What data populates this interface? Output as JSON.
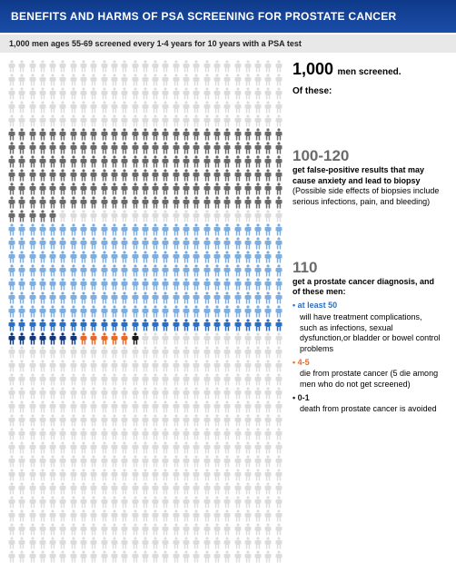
{
  "header": {
    "title": "BENEFITS AND HARMS OF PSA SCREENING FOR PROSTATE CANCER",
    "bg_gradient_from": "#0f3a8a",
    "bg_gradient_to": "#1a4da8"
  },
  "subheader": {
    "text": "1,000 men ages 55-69 screened every 1-4 years for 10 years with a PSA test",
    "bg": "#e8e8e8"
  },
  "colors": {
    "pale_gray": "#dcdcdc",
    "dark_gray": "#6b6b6b",
    "light_blue": "#7eaee0",
    "mid_blue": "#2a6fc7",
    "dark_blue": "#13397a",
    "orange": "#e86a2a",
    "black": "#1a1a1a",
    "text_gray": "#6b6b6b",
    "text_black": "#1a1a1a",
    "bullet_blue": "#2a6fc7",
    "bullet_orange": "#e86a2a",
    "bullet_black": "#1a1a1a"
  },
  "grid": {
    "cols": 27,
    "rows": 37,
    "runs": [
      {
        "color": "pale_gray",
        "count": 135
      },
      {
        "color": "dark_gray",
        "count": 167
      },
      {
        "color": "pale_gray",
        "count": 22
      },
      {
        "color": "light_blue",
        "count": 189
      },
      {
        "color": "mid_blue",
        "count": 27
      },
      {
        "color": "dark_blue",
        "count": 7
      },
      {
        "color": "orange",
        "count": 5
      },
      {
        "color": "black",
        "count": 1
      },
      {
        "color": "pale_gray",
        "count": 446
      }
    ]
  },
  "stats": {
    "screened": {
      "num": "1,000",
      "label": " men screened.",
      "of_these": "Of these:"
    },
    "false_pos": {
      "num": "100-120",
      "bold": "get false-positive results that may cause anxiety and lead to biopsy",
      "note": "(Possible side effects of biopsies include serious infections, pain, and bleeding)"
    },
    "diagnosed": {
      "num": "110",
      "bold": "get a prostate cancer diagnosis, and of these men:",
      "bullets": [
        {
          "dot_color": "bullet_blue",
          "label": "at least 50",
          "label_color": "bullet_blue",
          "desc": "will have treatment complications, such as infections, sexual dysfunction,or bladder or bowel control problems"
        },
        {
          "dot_color": "bullet_orange",
          "label": "4-5",
          "label_color": "bullet_orange",
          "desc": "die from prostate cancer (5 die among men who do not get screened)"
        },
        {
          "dot_color": "bullet_black",
          "label": "0-1",
          "label_color": "bullet_black",
          "desc": "death from prostate cancer is avoided"
        }
      ]
    }
  }
}
